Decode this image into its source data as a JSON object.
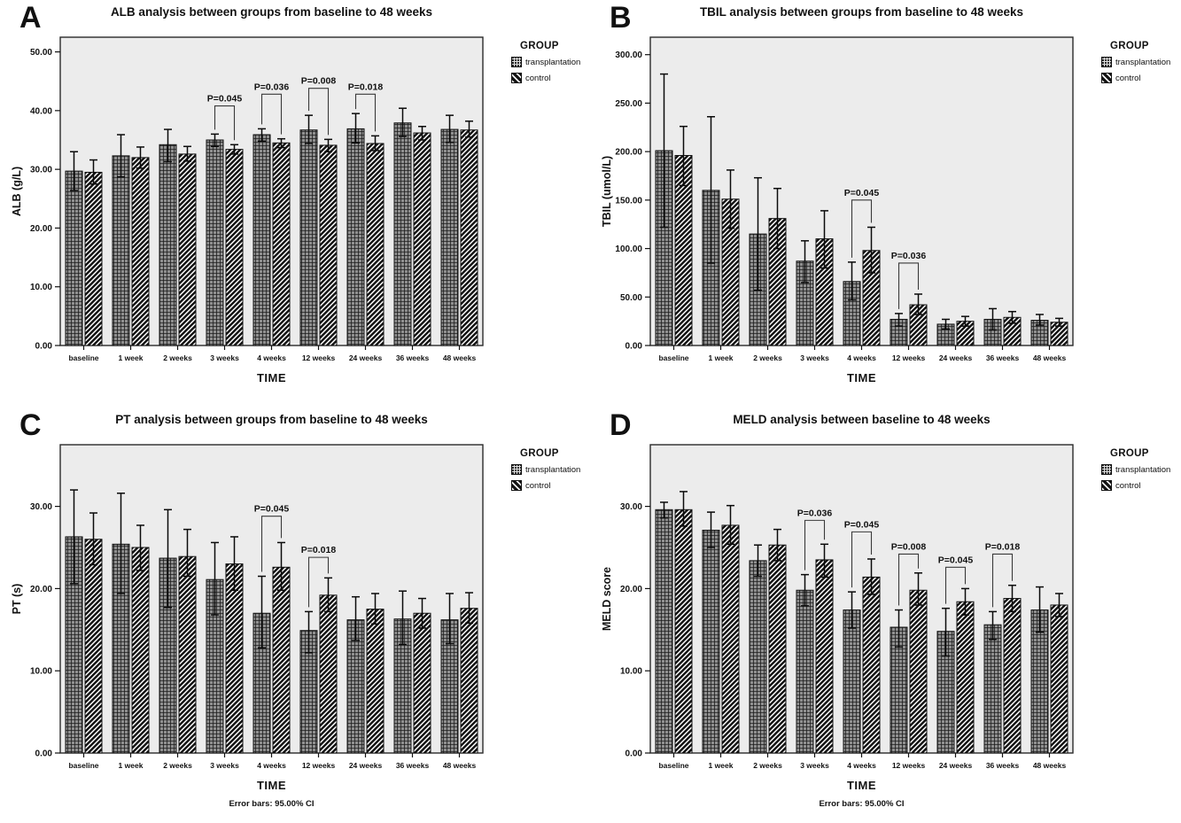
{
  "figure": {
    "legend": {
      "title": "GROUP",
      "items": [
        {
          "label": "transplantation",
          "pattern": "grid"
        },
        {
          "label": "control",
          "pattern": "diagonal"
        }
      ]
    },
    "colors": {
      "ink": "#111111",
      "plot_background": "#ececec",
      "bar_outline": "#111111"
    }
  },
  "chart_data": [
    {
      "panel": "A",
      "type": "bar",
      "title": "ALB analysis between groups from baseline to 48 weeks",
      "ylabel": "ALB (g/L)",
      "xlabel": "TIME",
      "ylim": [
        0,
        52.5
      ],
      "yticks": [
        0,
        10,
        20,
        30,
        40,
        50
      ],
      "categories": [
        "baseline",
        "1 week",
        "2 weeks",
        "3 weeks",
        "4 weeks",
        "12 weeks",
        "24 weeks",
        "36 weeks",
        "48 weeks"
      ],
      "series": [
        {
          "name": "transplantation",
          "values": [
            29.7,
            32.3,
            34.2,
            35.0,
            35.9,
            36.7,
            36.9,
            37.9,
            36.8
          ],
          "err_low": [
            26.4,
            28.7,
            31.3,
            33.9,
            34.8,
            34.4,
            34.5,
            35.6,
            34.6
          ],
          "err_high": [
            33.0,
            35.9,
            36.8,
            36.0,
            36.9,
            39.2,
            39.5,
            40.4,
            39.2
          ]
        },
        {
          "name": "control",
          "values": [
            29.5,
            32.0,
            32.6,
            33.4,
            34.5,
            34.1,
            34.4,
            36.2,
            36.7
          ],
          "err_low": [
            27.5,
            30.2,
            31.4,
            32.6,
            33.7,
            33.0,
            33.2,
            35.0,
            35.5
          ],
          "err_high": [
            31.6,
            33.8,
            33.9,
            34.2,
            35.2,
            35.1,
            35.7,
            37.3,
            38.2
          ]
        }
      ],
      "annotations": [
        {
          "category": "3 weeks",
          "label": "P=0.045",
          "bracket_y": 40.8
        },
        {
          "category": "4 weeks",
          "label": "P=0.036",
          "bracket_y": 42.8
        },
        {
          "category": "12 weeks",
          "label": "P=0.008",
          "bracket_y": 43.8
        },
        {
          "category": "24 weeks",
          "label": "P=0.018",
          "bracket_y": 42.8
        }
      ],
      "footnote": ""
    },
    {
      "panel": "B",
      "type": "bar",
      "title": "TBIL analysis between groups from baseline to 48 weeks",
      "ylabel": "TBIL (umol/L)",
      "xlabel": "TIME",
      "ylim": [
        0,
        318
      ],
      "yticks": [
        0,
        50,
        100,
        150,
        200,
        250,
        300
      ],
      "categories": [
        "baseline",
        "1 week",
        "2 weeks",
        "3 weeks",
        "4 weeks",
        "12 weeks",
        "24 weeks",
        "36 weeks",
        "48 weeks"
      ],
      "series": [
        {
          "name": "transplantation",
          "values": [
            201,
            160,
            115,
            87,
            66,
            27,
            22,
            27,
            26
          ],
          "err_low": [
            122,
            85,
            57,
            65,
            47,
            20,
            17,
            16,
            21
          ],
          "err_high": [
            280,
            236,
            173,
            108,
            86,
            33,
            27,
            38,
            32
          ]
        },
        {
          "name": "control",
          "values": [
            196,
            151,
            131,
            110,
            98,
            42,
            25,
            29,
            24
          ],
          "err_low": [
            165,
            121,
            100,
            80,
            75,
            32,
            20,
            23,
            20
          ],
          "err_high": [
            226,
            181,
            162,
            139,
            122,
            53,
            30,
            35,
            28
          ]
        }
      ],
      "annotations": [
        {
          "category": "4 weeks",
          "label": "P=0.045",
          "bracket_y": 150
        },
        {
          "category": "12 weeks",
          "label": "P=0.036",
          "bracket_y": 85
        }
      ],
      "footnote": ""
    },
    {
      "panel": "C",
      "type": "bar",
      "title": "PT analysis between groups from baseline to 48 weeks",
      "ylabel": "PT (s)",
      "xlabel": "TIME",
      "ylim": [
        0,
        37.5
      ],
      "yticks": [
        0,
        10,
        20,
        30
      ],
      "categories": [
        "baseline",
        "1 week",
        "2 weeks",
        "3 weeks",
        "4 weeks",
        "12 weeks",
        "24 weeks",
        "36 weeks",
        "48 weeks"
      ],
      "series": [
        {
          "name": "transplantation",
          "values": [
            26.3,
            25.4,
            23.7,
            21.1,
            17.0,
            14.9,
            16.2,
            16.3,
            16.2
          ],
          "err_low": [
            20.6,
            19.4,
            17.7,
            16.8,
            12.8,
            12.2,
            13.7,
            13.2,
            13.3
          ],
          "err_high": [
            32.0,
            31.6,
            29.6,
            25.6,
            21.5,
            17.2,
            19.0,
            19.7,
            19.4
          ]
        },
        {
          "name": "control",
          "values": [
            26.0,
            25.0,
            23.9,
            23.0,
            22.6,
            19.2,
            17.5,
            17.0,
            17.6
          ],
          "err_low": [
            22.9,
            22.2,
            21.5,
            19.8,
            19.8,
            17.2,
            15.7,
            15.2,
            15.8
          ],
          "err_high": [
            29.2,
            27.7,
            27.2,
            26.3,
            25.6,
            21.3,
            19.4,
            18.8,
            19.5
          ]
        }
      ],
      "annotations": [
        {
          "category": "4 weeks",
          "label": "P=0.045",
          "bracket_y": 28.8
        },
        {
          "category": "12 weeks",
          "label": "P=0.018",
          "bracket_y": 23.8
        }
      ],
      "footnote": "Error bars: 95.00% CI"
    },
    {
      "panel": "D",
      "type": "bar",
      "title": "MELD analysis between baseline to 48 weeks",
      "ylabel": "MELD score",
      "xlabel": "TIME",
      "ylim": [
        0,
        37.5
      ],
      "yticks": [
        0,
        10,
        20,
        30
      ],
      "categories": [
        "baseline",
        "1 week",
        "2 weeks",
        "3 weeks",
        "4 weeks",
        "12 weeks",
        "24 weeks",
        "36 weeks",
        "48 weeks"
      ],
      "series": [
        {
          "name": "transplantation",
          "values": [
            29.6,
            27.1,
            23.4,
            19.8,
            17.4,
            15.3,
            14.8,
            15.6,
            17.4
          ],
          "err_low": [
            28.6,
            25.0,
            21.5,
            17.9,
            15.2,
            12.9,
            11.8,
            13.8,
            14.7
          ],
          "err_high": [
            30.5,
            29.3,
            25.3,
            21.7,
            19.6,
            17.4,
            17.6,
            17.2,
            20.2
          ]
        },
        {
          "name": "control",
          "values": [
            29.6,
            27.7,
            25.3,
            23.5,
            21.4,
            19.8,
            18.4,
            18.8,
            18.0
          ],
          "err_low": [
            27.6,
            25.4,
            23.4,
            21.4,
            19.3,
            18.0,
            16.8,
            17.2,
            16.6
          ],
          "err_high": [
            31.8,
            30.1,
            27.2,
            25.4,
            23.6,
            21.9,
            20.0,
            20.4,
            19.4
          ]
        }
      ],
      "annotations": [
        {
          "category": "3 weeks",
          "label": "P=0.036",
          "bracket_y": 28.3
        },
        {
          "category": "4 weeks",
          "label": "P=0.045",
          "bracket_y": 26.9
        },
        {
          "category": "12 weeks",
          "label": "P=0.008",
          "bracket_y": 24.2
        },
        {
          "category": "24 weeks",
          "label": "P=0.045",
          "bracket_y": 22.6
        },
        {
          "category": "36 weeks",
          "label": "P=0.018",
          "bracket_y": 24.2
        }
      ],
      "footnote": "Error bars: 95.00% CI"
    }
  ]
}
